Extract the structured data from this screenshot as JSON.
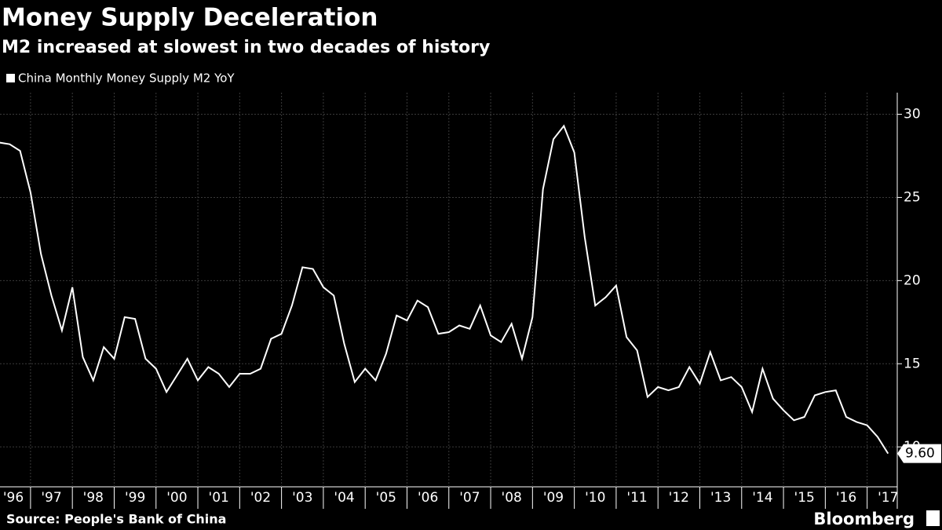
{
  "chart_data": {
    "type": "line",
    "title": "Money Supply Deceleration",
    "subtitle": "M2 increased at slowest in two decades of history",
    "source": "Source: People's Bank of China",
    "brand": "Bloomberg",
    "series": [
      {
        "name": "China Monthly Money Supply M2 YoY",
        "color": "#ffffff",
        "x": [
          1996.25,
          1996.5,
          1996.75,
          1997,
          1997.25,
          1997.5,
          1997.75,
          1998,
          1998.25,
          1998.5,
          1998.75,
          1999,
          1999.25,
          1999.5,
          1999.75,
          2000,
          2000.25,
          2000.5,
          2000.75,
          2001,
          2001.25,
          2001.5,
          2001.75,
          2002,
          2002.25,
          2002.5,
          2002.75,
          2003,
          2003.25,
          2003.5,
          2003.75,
          2004,
          2004.25,
          2004.5,
          2004.75,
          2005,
          2005.25,
          2005.5,
          2005.75,
          2006,
          2006.25,
          2006.5,
          2006.75,
          2007,
          2007.25,
          2007.5,
          2007.75,
          2008,
          2008.25,
          2008.5,
          2008.75,
          2009,
          2009.25,
          2009.5,
          2009.75,
          2010,
          2010.25,
          2010.5,
          2010.75,
          2011,
          2011.25,
          2011.5,
          2011.75,
          2012,
          2012.25,
          2012.5,
          2012.75,
          2013,
          2013.25,
          2013.5,
          2013.75,
          2014,
          2014.25,
          2014.5,
          2014.75,
          2015,
          2015.25,
          2015.5,
          2015.75,
          2016,
          2016.25,
          2016.5,
          2016.75,
          2017,
          2017.25,
          2017.5
        ],
        "values": [
          28.3,
          28.2,
          27.8,
          25.3,
          21.6,
          19.1,
          17.0,
          19.6,
          15.4,
          14.0,
          16.0,
          15.3,
          17.8,
          17.7,
          15.3,
          14.7,
          13.3,
          14.3,
          15.3,
          14.0,
          14.8,
          14.4,
          13.6,
          14.4,
          14.4,
          14.7,
          16.5,
          16.8,
          18.5,
          20.8,
          20.7,
          19.6,
          19.1,
          16.2,
          13.9,
          14.7,
          14.0,
          15.6,
          17.9,
          17.6,
          18.8,
          18.4,
          16.8,
          16.9,
          17.3,
          17.1,
          18.5,
          16.7,
          16.3,
          17.4,
          15.3,
          17.8,
          25.5,
          28.5,
          29.3,
          27.7,
          22.6,
          18.5,
          19.0,
          19.7,
          16.6,
          15.8,
          13.0,
          13.6,
          13.4,
          13.6,
          14.8,
          13.8,
          15.7,
          14.0,
          14.2,
          13.6,
          12.1,
          14.7,
          12.9,
          12.2,
          11.6,
          11.8,
          13.1,
          13.3,
          13.4,
          11.8,
          11.5,
          11.3,
          10.6,
          9.6
        ],
        "value_labels": [
          null,
          null,
          null,
          null,
          null,
          null,
          null,
          null,
          null,
          null,
          null,
          null,
          null,
          null,
          null,
          null,
          null,
          null,
          null,
          null,
          null,
          null,
          null,
          null,
          null,
          null,
          null,
          null,
          null,
          null,
          null,
          null,
          null,
          null,
          null,
          null,
          null,
          null,
          null,
          null,
          null,
          null,
          null,
          null,
          null,
          null,
          null,
          null,
          null,
          null,
          null,
          null,
          null,
          null,
          null,
          null,
          null,
          null,
          null,
          null,
          null,
          null,
          null,
          null,
          null,
          null,
          null,
          null,
          null,
          null,
          null,
          null,
          null,
          null,
          null,
          null,
          null,
          null,
          null,
          null,
          null,
          null,
          null,
          null,
          null,
          "9.60"
        ]
      }
    ],
    "xlim": [
      1996.27,
      2017.72
    ],
    "xticks": [
      {
        "value": 1996,
        "label": "'96"
      },
      {
        "value": 1997,
        "label": "'97"
      },
      {
        "value": 1998,
        "label": "'98"
      },
      {
        "value": 1999,
        "label": "'99"
      },
      {
        "value": 2000,
        "label": "'00"
      },
      {
        "value": 2001,
        "label": "'01"
      },
      {
        "value": 2002,
        "label": "'02"
      },
      {
        "value": 2003,
        "label": "'03"
      },
      {
        "value": 2004,
        "label": "'04"
      },
      {
        "value": 2005,
        "label": "'05"
      },
      {
        "value": 2006,
        "label": "'06"
      },
      {
        "value": 2007,
        "label": "'07"
      },
      {
        "value": 2008,
        "label": "'08"
      },
      {
        "value": 2009,
        "label": "'09"
      },
      {
        "value": 2010,
        "label": "'10"
      },
      {
        "value": 2011,
        "label": "'11"
      },
      {
        "value": 2012,
        "label": "'12"
      },
      {
        "value": 2013,
        "label": "'13"
      },
      {
        "value": 2014,
        "label": "'14"
      },
      {
        "value": 2015,
        "label": "'15"
      },
      {
        "value": 2016,
        "label": "'16"
      },
      {
        "value": 2017,
        "label": "'17"
      }
    ],
    "ylim": [
      7.6,
      31.3
    ],
    "yticks": [
      10,
      15,
      20,
      25,
      30
    ],
    "grid": true
  }
}
